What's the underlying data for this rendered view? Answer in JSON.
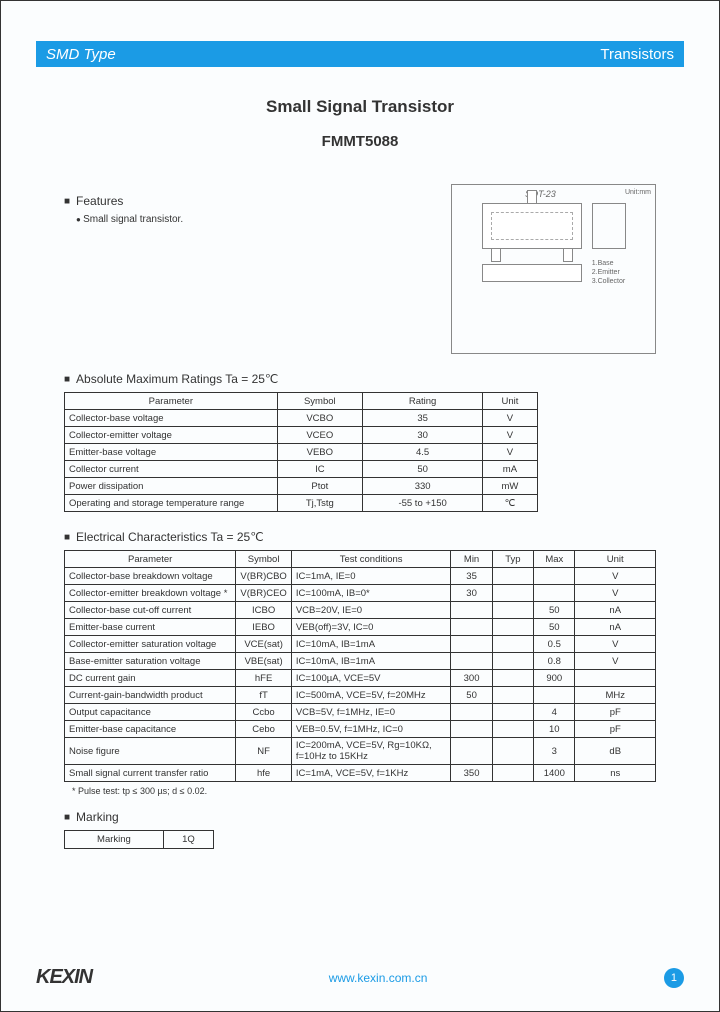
{
  "header": {
    "left": "SMD Type",
    "right": "Transistors"
  },
  "title": {
    "main": "Small Signal Transistor",
    "part": "FMMT5088"
  },
  "features": {
    "heading": "Features",
    "items": [
      "Small signal transistor."
    ]
  },
  "diagram": {
    "package_label": "SOT-23",
    "unit_label": "Unit:mm",
    "pins": [
      "1.Base",
      "2.Emitter",
      "3.Collector"
    ]
  },
  "max_ratings": {
    "heading": "Absolute Maximum Ratings Ta = 25℃",
    "columns": [
      "Parameter",
      "Symbol",
      "Rating",
      "Unit"
    ],
    "rows": [
      [
        "Collector-base voltage",
        "VCBO",
        "35",
        "V"
      ],
      [
        "Collector-emitter voltage",
        "VCEO",
        "30",
        "V"
      ],
      [
        "Emitter-base voltage",
        "VEBO",
        "4.5",
        "V"
      ],
      [
        "Collector current",
        "IC",
        "50",
        "mA"
      ],
      [
        "Power dissipation",
        "Ptot",
        "330",
        "mW"
      ],
      [
        "Operating and storage temperature range",
        "Tj,Tstg",
        "-55 to +150",
        "℃"
      ]
    ]
  },
  "elec": {
    "heading": "Electrical Characteristics Ta = 25℃",
    "columns": [
      "Parameter",
      "Symbol",
      "Test conditions",
      "Min",
      "Typ",
      "Max",
      "Unit"
    ],
    "rows": [
      [
        "Collector-base breakdown voltage",
        "V(BR)CBO",
        "IC=1mA, IE=0",
        "35",
        "",
        "",
        "V"
      ],
      [
        "Collector-emitter breakdown voltage *",
        "V(BR)CEO",
        "IC=100mA, IB=0*",
        "30",
        "",
        "",
        "V"
      ],
      [
        "Collector-base cut-off current",
        "ICBO",
        "VCB=20V, IE=0",
        "",
        "",
        "50",
        "nA"
      ],
      [
        "Emitter-base current",
        "IEBO",
        "VEB(off)=3V, IC=0",
        "",
        "",
        "50",
        "nA"
      ],
      [
        "Collector-emitter saturation voltage",
        "VCE(sat)",
        "IC=10mA, IB=1mA",
        "",
        "",
        "0.5",
        "V"
      ],
      [
        "Base-emitter saturation voltage",
        "VBE(sat)",
        "IC=10mA, IB=1mA",
        "",
        "",
        "0.8",
        "V"
      ],
      [
        "DC current gain",
        "hFE",
        "IC=100µA, VCE=5V",
        "300",
        "",
        "900",
        ""
      ],
      [
        "Current-gain-bandwidth product",
        "fT",
        "IC=500mA, VCE=5V, f=20MHz",
        "50",
        "",
        "",
        "MHz"
      ],
      [
        "Output capacitance",
        "Ccbo",
        "VCB=5V, f=1MHz, IE=0",
        "",
        "",
        "4",
        "pF"
      ],
      [
        "Emitter-base capacitance",
        "Cebo",
        "VEB=0.5V, f=1MHz, IC=0",
        "",
        "",
        "10",
        "pF"
      ],
      [
        "Noise figure",
        "NF",
        "IC=200mA, VCE=5V,\nRg=10KΩ, f=10Hz to 15KHz",
        "",
        "",
        "3",
        "dB"
      ],
      [
        "Small signal current transfer ratio",
        "hfe",
        "IC=1mA, VCE=5V, f=1KHz",
        "350",
        "",
        "1400",
        "ns"
      ]
    ],
    "footnote": "* Pulse test: tp ≤ 300 µs; d ≤ 0.02."
  },
  "marking": {
    "heading": "Marking",
    "label": "Marking",
    "value": "1Q"
  },
  "footer": {
    "logo": "KEXIN",
    "url": "www.kexin.com.cn",
    "page": "1"
  }
}
